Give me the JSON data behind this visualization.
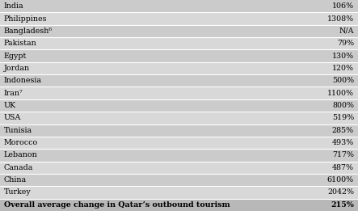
{
  "rows": [
    {
      "country": "India",
      "value": "106%",
      "bold": false
    },
    {
      "country": "Philippines",
      "value": "1308%",
      "bold": false
    },
    {
      "country": "Bangladesh⁶",
      "value": "N/A",
      "bold": false
    },
    {
      "country": "Pakistan",
      "value": "79%",
      "bold": false
    },
    {
      "country": "Egypt",
      "value": "130%",
      "bold": false
    },
    {
      "country": "Jordan",
      "value": "120%",
      "bold": false
    },
    {
      "country": "Indonesia",
      "value": "500%",
      "bold": false
    },
    {
      "country": "Iran⁷",
      "value": "1100%",
      "bold": false
    },
    {
      "country": "UK",
      "value": "800%",
      "bold": false
    },
    {
      "country": "USA",
      "value": "519%",
      "bold": false
    },
    {
      "country": "Tunisia",
      "value": "285%",
      "bold": false
    },
    {
      "country": "Morocco",
      "value": "493%",
      "bold": false
    },
    {
      "country": "Lebanon",
      "value": "717%",
      "bold": false
    },
    {
      "country": "Canada",
      "value": "487%",
      "bold": false
    },
    {
      "country": "China",
      "value": "6100%",
      "bold": false
    },
    {
      "country": "Turkey",
      "value": "2042%",
      "bold": false
    },
    {
      "country": "Overall average change in Qatar’s outbound tourism",
      "value": "215%",
      "bold": true
    }
  ],
  "color_odd": "#cbcbcb",
  "color_even": "#d8d8d8",
  "color_last": "#b8b8b8",
  "text_color": "#000000",
  "font_size": 6.8,
  "separator_color": "#ffffff",
  "separator_lw": 0.8
}
